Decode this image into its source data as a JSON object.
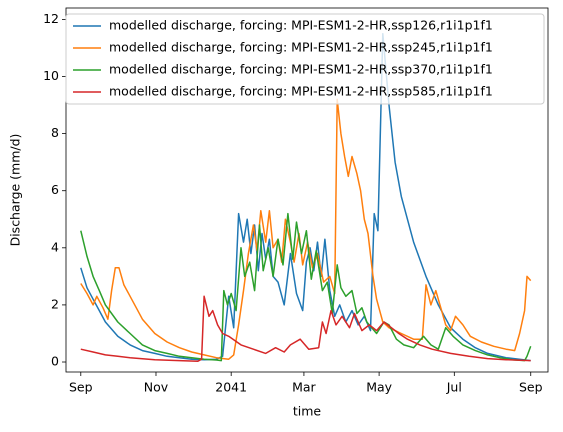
{
  "chart_data": {
    "type": "line",
    "xlabel": "time",
    "ylabel": "Discharge (mm/d)",
    "xlim": [
      -12,
      379
    ],
    "ylim": [
      -0.35,
      12.4
    ],
    "xticks": [
      {
        "value": 0,
        "label": "Sep"
      },
      {
        "value": 61,
        "label": "Nov"
      },
      {
        "value": 122,
        "label": "2041"
      },
      {
        "value": 181,
        "label": "Mar"
      },
      {
        "value": 242,
        "label": "May"
      },
      {
        "value": 303,
        "label": "Jul"
      },
      {
        "value": 365,
        "label": "Sep"
      }
    ],
    "yticks": [
      0,
      2,
      4,
      6,
      8,
      10,
      12
    ],
    "legend": "upper right",
    "series": [
      {
        "name": "modelled discharge, forcing: MPI-ESM1-2-HR,ssp126,r1i1p1f1",
        "color": "#1f77b4",
        "x": [
          0,
          5,
          10,
          15,
          20,
          30,
          40,
          50,
          60,
          70,
          80,
          90,
          100,
          110,
          115,
          120,
          124,
          128,
          132,
          135,
          138,
          141,
          144,
          147,
          150,
          153,
          156,
          160,
          165,
          170,
          175,
          180,
          183,
          186,
          189,
          192,
          195,
          198,
          202,
          206,
          210,
          215,
          220,
          225,
          230,
          235,
          238,
          241,
          245,
          250,
          255,
          260,
          270,
          280,
          290,
          300,
          310,
          320,
          330,
          345,
          365
        ],
        "values": [
          3.3,
          2.6,
          2.2,
          1.8,
          1.4,
          0.9,
          0.6,
          0.4,
          0.3,
          0.2,
          0.15,
          0.1,
          0.08,
          0.1,
          0.2,
          2.3,
          1.2,
          5.2,
          4.2,
          5.0,
          3.8,
          4.8,
          3.2,
          4.5,
          3.6,
          4.3,
          3.0,
          2.8,
          2.0,
          3.8,
          2.4,
          1.8,
          3.5,
          4.0,
          3.2,
          4.2,
          3.0,
          4.3,
          2.5,
          1.6,
          2.0,
          1.4,
          1.8,
          1.3,
          1.6,
          1.1,
          5.2,
          4.6,
          11.5,
          9.0,
          7.0,
          5.8,
          4.2,
          3.0,
          2.0,
          1.2,
          0.8,
          0.5,
          0.3,
          0.15,
          0.05
        ]
      },
      {
        "name": "modelled discharge, forcing: MPI-ESM1-2-HR,ssp245,r1i1p1f1",
        "color": "#ff7f0e",
        "x": [
          0,
          5,
          10,
          13,
          18,
          22,
          25,
          28,
          31,
          35,
          40,
          45,
          50,
          60,
          70,
          80,
          90,
          100,
          110,
          120,
          124,
          128,
          132,
          136,
          140,
          143,
          146,
          150,
          153,
          156,
          160,
          163,
          166,
          170,
          173,
          177,
          180,
          184,
          188,
          192,
          197,
          202,
          206,
          208,
          211,
          214,
          217,
          220,
          224,
          227,
          230,
          233,
          237,
          240,
          245,
          250,
          260,
          270,
          277,
          280,
          284,
          288,
          292,
          296,
          300,
          304,
          310,
          316,
          325,
          335,
          345,
          352,
          356,
          360,
          362,
          365
        ],
        "values": [
          2.75,
          2.4,
          2.0,
          2.3,
          1.9,
          1.5,
          2.5,
          3.3,
          3.3,
          2.7,
          2.3,
          1.9,
          1.5,
          1.0,
          0.7,
          0.5,
          0.35,
          0.25,
          0.15,
          0.1,
          0.25,
          1.3,
          2.5,
          3.8,
          4.8,
          3.9,
          5.3,
          4.2,
          5.3,
          4.0,
          4.3,
          3.5,
          5.0,
          4.2,
          3.5,
          4.5,
          3.4,
          4.2,
          3.3,
          3.8,
          2.8,
          3.0,
          2.4,
          9.2,
          8.0,
          7.2,
          6.5,
          7.2,
          6.6,
          6.0,
          5.0,
          4.5,
          3.0,
          2.2,
          1.4,
          1.2,
          1.0,
          0.8,
          0.8,
          2.7,
          2.0,
          2.5,
          1.9,
          1.3,
          1.1,
          1.6,
          1.3,
          0.9,
          0.7,
          0.55,
          0.45,
          0.4,
          1.0,
          1.8,
          3.0,
          2.85
        ]
      },
      {
        "name": "modelled discharge, forcing: MPI-ESM1-2-HR,ssp370,r1i1p1f1",
        "color": "#2ca02c",
        "x": [
          0,
          5,
          10,
          15,
          20,
          30,
          40,
          50,
          60,
          70,
          80,
          90,
          100,
          110,
          114,
          116,
          119,
          122,
          126,
          130,
          133,
          137,
          141,
          145,
          148,
          152,
          156,
          160,
          164,
          168,
          172,
          175,
          179,
          183,
          187,
          191,
          196,
          200,
          204,
          208,
          211,
          215,
          220,
          224,
          228,
          232,
          236,
          240,
          246,
          250,
          256,
          262,
          270,
          278,
          284,
          290,
          296,
          302,
          310,
          320,
          330,
          340,
          350,
          360,
          362,
          365
        ],
        "values": [
          4.6,
          3.7,
          3.0,
          2.5,
          2.0,
          1.4,
          1.0,
          0.6,
          0.4,
          0.3,
          0.2,
          0.15,
          0.1,
          0.07,
          0.05,
          2.5,
          2.0,
          2.4,
          1.8,
          4.0,
          3.0,
          3.5,
          2.5,
          4.8,
          3.2,
          4.0,
          3.0,
          4.3,
          3.4,
          5.2,
          3.6,
          4.9,
          3.8,
          4.6,
          2.9,
          3.9,
          2.5,
          2.8,
          1.7,
          3.4,
          2.6,
          2.3,
          2.5,
          1.7,
          1.9,
          1.4,
          1.2,
          1.0,
          1.4,
          1.3,
          0.8,
          0.6,
          0.5,
          0.9,
          0.6,
          0.45,
          1.2,
          0.9,
          0.6,
          0.4,
          0.25,
          0.15,
          0.08,
          0.05,
          0.2,
          0.55
        ]
      },
      {
        "name": "modelled discharge, forcing: MPI-ESM1-2-HR,ssp585,r1i1p1f1",
        "color": "#d62728",
        "x": [
          0,
          10,
          20,
          30,
          40,
          60,
          80,
          95,
          98,
          100,
          104,
          107,
          111,
          115,
          120,
          130,
          140,
          150,
          158,
          165,
          170,
          178,
          185,
          193,
          196,
          199,
          203,
          207,
          212,
          218,
          222,
          228,
          234,
          240,
          246,
          252,
          258,
          265,
          275,
          285,
          300,
          315,
          330,
          345,
          365
        ],
        "values": [
          0.45,
          0.35,
          0.25,
          0.2,
          0.15,
          0.08,
          0.05,
          0.03,
          0.1,
          2.3,
          1.6,
          1.8,
          1.3,
          1.0,
          0.9,
          0.6,
          0.45,
          0.3,
          0.5,
          0.35,
          0.6,
          0.8,
          0.45,
          0.5,
          1.4,
          1.0,
          1.8,
          1.3,
          1.6,
          1.2,
          1.7,
          1.1,
          1.3,
          1.1,
          1.4,
          1.2,
          1.0,
          0.8,
          0.6,
          0.45,
          0.3,
          0.2,
          0.12,
          0.08,
          0.05
        ]
      }
    ]
  }
}
